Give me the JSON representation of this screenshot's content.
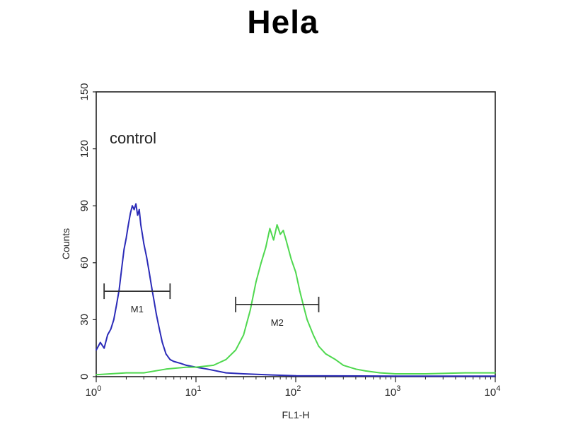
{
  "chart_data": {
    "type": "line",
    "title": "Hela",
    "annotation": "control",
    "xlabel": "FL1-H",
    "ylabel": "Counts",
    "xscale": "log",
    "xlim": [
      1,
      10000
    ],
    "ylim": [
      0,
      150
    ],
    "x_ticks": [
      {
        "base": "10",
        "exp": "0",
        "value": 1
      },
      {
        "base": "10",
        "exp": "1",
        "value": 10
      },
      {
        "base": "10",
        "exp": "2",
        "value": 100
      },
      {
        "base": "10",
        "exp": "3",
        "value": 1000
      },
      {
        "base": "10",
        "exp": "4",
        "value": 10000
      }
    ],
    "y_ticks": [
      "0",
      "30",
      "60",
      "90",
      "120",
      "150"
    ],
    "grid": false,
    "series": [
      {
        "color": "#2b2bb8",
        "x": [
          1,
          1.1,
          1.2,
          1.3,
          1.4,
          1.5,
          1.6,
          1.7,
          1.8,
          1.9,
          2.0,
          2.1,
          2.2,
          2.3,
          2.4,
          2.5,
          2.6,
          2.7,
          2.8,
          2.9,
          3.0,
          3.2,
          3.4,
          3.6,
          3.8,
          4.0,
          4.3,
          4.6,
          5.0,
          5.5,
          6.0,
          7.0,
          8.0,
          10,
          13,
          20,
          30,
          50,
          100,
          1000,
          10000
        ],
        "values": [
          14,
          18,
          15,
          22,
          25,
          30,
          38,
          46,
          57,
          67,
          73,
          80,
          86,
          90,
          88,
          91,
          85,
          88,
          80,
          75,
          70,
          63,
          55,
          47,
          40,
          33,
          25,
          18,
          12,
          9,
          8,
          7,
          6,
          5,
          4,
          2,
          1.5,
          1,
          0.5,
          0.3,
          0.3
        ]
      },
      {
        "color": "#4fd84f",
        "x": [
          1,
          2,
          3,
          5,
          8,
          10,
          15,
          20,
          25,
          30,
          35,
          40,
          45,
          50,
          55,
          60,
          65,
          70,
          75,
          80,
          90,
          100,
          110,
          120,
          130,
          150,
          170,
          200,
          250,
          300,
          400,
          500,
          700,
          1000,
          2000,
          5000,
          10000
        ],
        "values": [
          1,
          2,
          2,
          4,
          5,
          5,
          6,
          9,
          14,
          22,
          35,
          50,
          60,
          68,
          78,
          72,
          80,
          75,
          77,
          72,
          62,
          55,
          45,
          37,
          30,
          22,
          16,
          12,
          9,
          6,
          4,
          3,
          2,
          1.5,
          1.5,
          2,
          2
        ]
      }
    ],
    "markers": [
      {
        "label": "M1",
        "x_start": 1.2,
        "x_end": 5.5,
        "y": 45
      },
      {
        "label": "M2",
        "x_start": 25,
        "x_end": 170,
        "y": 38
      }
    ]
  }
}
